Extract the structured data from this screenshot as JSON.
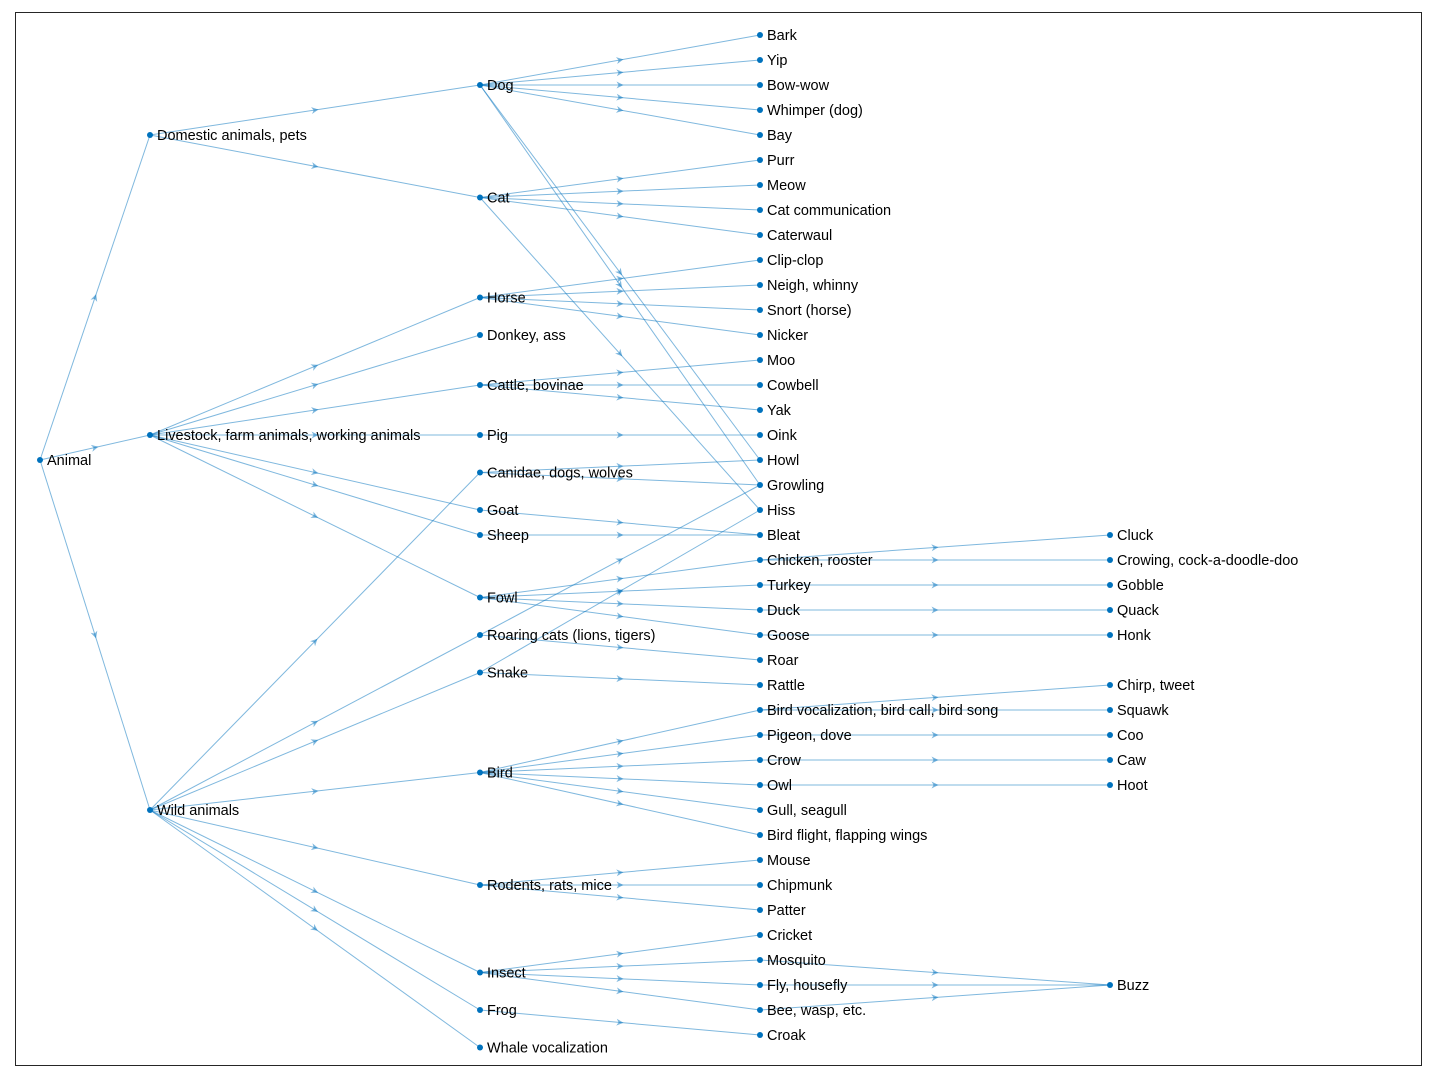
{
  "diagram": {
    "type": "directed-graph-layered",
    "node_color": "#0072BD",
    "edge_color": "#0072BD",
    "nodes": [
      "Animal",
      "Domestic animals, pets",
      "Livestock, farm animals, working animals",
      "Wild animals",
      "Dog",
      "Cat",
      "Horse",
      "Donkey, ass",
      "Cattle, bovinae",
      "Pig",
      "Canidae, dogs, wolves",
      "Goat",
      "Sheep",
      "Fowl",
      "Roaring cats (lions, tigers)",
      "Snake",
      "Bird",
      "Rodents, rats, mice",
      "Insect",
      "Frog",
      "Whale vocalization",
      "Bark",
      "Yip",
      "Bow-wow",
      "Whimper (dog)",
      "Bay",
      "Purr",
      "Meow",
      "Cat communication",
      "Caterwaul",
      "Clip-clop",
      "Neigh, whinny",
      "Snort (horse)",
      "Nicker",
      "Moo",
      "Cowbell",
      "Yak",
      "Oink",
      "Howl",
      "Growling",
      "Hiss",
      "Bleat",
      "Chicken, rooster",
      "Turkey",
      "Duck",
      "Goose",
      "Roar",
      "Rattle",
      "Bird vocalization, bird call, bird song",
      "Pigeon, dove",
      "Crow",
      "Owl",
      "Gull, seagull",
      "Bird flight, flapping wings",
      "Mouse",
      "Chipmunk",
      "Patter",
      "Cricket",
      "Mosquito",
      "Fly, housefly",
      "Bee, wasp, etc.",
      "Croak",
      "Cluck",
      "Crowing, cock-a-doodle-doo",
      "Gobble",
      "Quack",
      "Honk",
      "Chirp, tweet",
      "Squawk",
      "Coo",
      "Caw",
      "Hoot",
      "Buzz"
    ],
    "edges": [
      [
        "Animal",
        "Domestic animals, pets"
      ],
      [
        "Animal",
        "Livestock, farm animals, working animals"
      ],
      [
        "Animal",
        "Wild animals"
      ],
      [
        "Domestic animals, pets",
        "Dog"
      ],
      [
        "Domestic animals, pets",
        "Cat"
      ],
      [
        "Livestock, farm animals, working animals",
        "Horse"
      ],
      [
        "Livestock, farm animals, working animals",
        "Donkey, ass"
      ],
      [
        "Livestock, farm animals, working animals",
        "Cattle, bovinae"
      ],
      [
        "Livestock, farm animals, working animals",
        "Pig"
      ],
      [
        "Livestock, farm animals, working animals",
        "Goat"
      ],
      [
        "Livestock, farm animals, working animals",
        "Sheep"
      ],
      [
        "Livestock, farm animals, working animals",
        "Fowl"
      ],
      [
        "Wild animals",
        "Canidae, dogs, wolves"
      ],
      [
        "Wild animals",
        "Roaring cats (lions, tigers)"
      ],
      [
        "Wild animals",
        "Snake"
      ],
      [
        "Wild animals",
        "Bird"
      ],
      [
        "Wild animals",
        "Rodents, rats, mice"
      ],
      [
        "Wild animals",
        "Insect"
      ],
      [
        "Wild animals",
        "Frog"
      ],
      [
        "Wild animals",
        "Whale vocalization"
      ],
      [
        "Dog",
        "Bark"
      ],
      [
        "Dog",
        "Yip"
      ],
      [
        "Dog",
        "Bow-wow"
      ],
      [
        "Dog",
        "Whimper (dog)"
      ],
      [
        "Dog",
        "Bay"
      ],
      [
        "Dog",
        "Howl"
      ],
      [
        "Dog",
        "Growling"
      ],
      [
        "Cat",
        "Purr"
      ],
      [
        "Cat",
        "Meow"
      ],
      [
        "Cat",
        "Cat communication"
      ],
      [
        "Cat",
        "Caterwaul"
      ],
      [
        "Cat",
        "Hiss"
      ],
      [
        "Horse",
        "Clip-clop"
      ],
      [
        "Horse",
        "Neigh, whinny"
      ],
      [
        "Horse",
        "Snort (horse)"
      ],
      [
        "Horse",
        "Nicker"
      ],
      [
        "Cattle, bovinae",
        "Moo"
      ],
      [
        "Cattle, bovinae",
        "Cowbell"
      ],
      [
        "Cattle, bovinae",
        "Yak"
      ],
      [
        "Pig",
        "Oink"
      ],
      [
        "Canidae, dogs, wolves",
        "Howl"
      ],
      [
        "Canidae, dogs, wolves",
        "Growling"
      ],
      [
        "Goat",
        "Bleat"
      ],
      [
        "Sheep",
        "Bleat"
      ],
      [
        "Fowl",
        "Chicken, rooster"
      ],
      [
        "Fowl",
        "Turkey"
      ],
      [
        "Fowl",
        "Duck"
      ],
      [
        "Fowl",
        "Goose"
      ],
      [
        "Roaring cats (lions, tigers)",
        "Roar"
      ],
      [
        "Roaring cats (lions, tigers)",
        "Growling"
      ],
      [
        "Snake",
        "Rattle"
      ],
      [
        "Snake",
        "Hiss"
      ],
      [
        "Bird",
        "Bird vocalization, bird call, bird song"
      ],
      [
        "Bird",
        "Pigeon, dove"
      ],
      [
        "Bird",
        "Crow"
      ],
      [
        "Bird",
        "Owl"
      ],
      [
        "Bird",
        "Gull, seagull"
      ],
      [
        "Bird",
        "Bird flight, flapping wings"
      ],
      [
        "Rodents, rats, mice",
        "Mouse"
      ],
      [
        "Rodents, rats, mice",
        "Chipmunk"
      ],
      [
        "Rodents, rats, mice",
        "Patter"
      ],
      [
        "Insect",
        "Cricket"
      ],
      [
        "Insect",
        "Mosquito"
      ],
      [
        "Insect",
        "Fly, housefly"
      ],
      [
        "Insect",
        "Bee, wasp, etc."
      ],
      [
        "Frog",
        "Croak"
      ],
      [
        "Chicken, rooster",
        "Cluck"
      ],
      [
        "Chicken, rooster",
        "Crowing, cock-a-doodle-doo"
      ],
      [
        "Turkey",
        "Gobble"
      ],
      [
        "Duck",
        "Quack"
      ],
      [
        "Goose",
        "Honk"
      ],
      [
        "Bird vocalization, bird call, bird song",
        "Chirp, tweet"
      ],
      [
        "Bird vocalization, bird call, bird song",
        "Squawk"
      ],
      [
        "Pigeon, dove",
        "Coo"
      ],
      [
        "Crow",
        "Caw"
      ],
      [
        "Owl",
        "Hoot"
      ],
      [
        "Mosquito",
        "Buzz"
      ],
      [
        "Fly, housefly",
        "Buzz"
      ],
      [
        "Bee, wasp, etc.",
        "Buzz"
      ]
    ]
  }
}
